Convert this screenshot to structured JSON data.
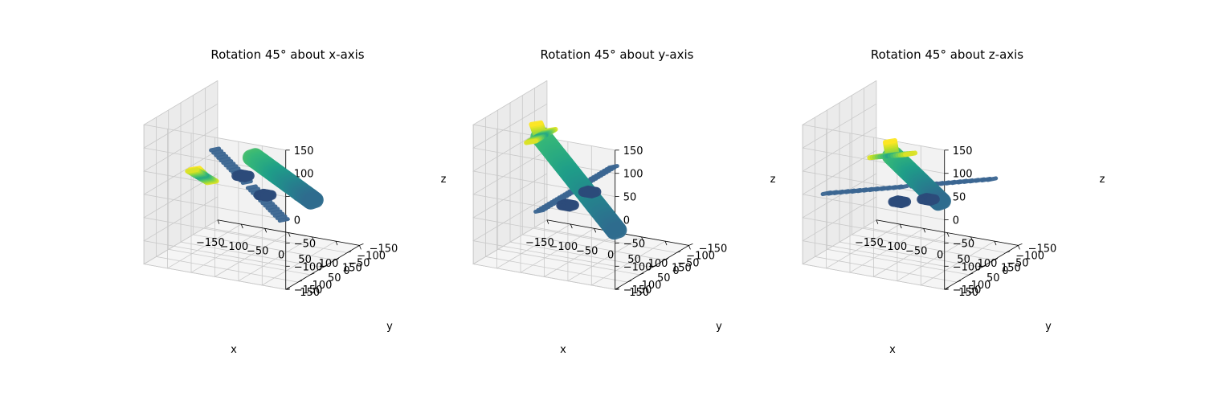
{
  "chart_data": [
    {
      "type": "scatter3d",
      "title": "Rotation 45° about x-axis",
      "xlabel": "x",
      "ylabel": "y",
      "zlabel": "z",
      "xlim": [
        -150,
        150
      ],
      "ylim": [
        -150,
        150
      ],
      "zlim": [
        -150,
        150
      ],
      "xticks": [
        "−150",
        "−100",
        "−50",
        "0",
        "50",
        "100",
        "150"
      ],
      "yticks": [
        "−150",
        "−100",
        "−50",
        "0",
        "50",
        "100",
        "150"
      ],
      "zticks": [
        "−150",
        "−100",
        "−50",
        "0",
        "50",
        "100",
        "150"
      ],
      "grid": true,
      "colormap": "viridis",
      "object": "airplane point cloud",
      "fuselage": {
        "from": [
          -5,
          -15,
          55
        ],
        "to": [
          130,
          0,
          -10
        ]
      },
      "wings": {
        "from": [
          -5,
          -140,
          -120
        ],
        "to": [
          -5,
          140,
          120
        ]
      },
      "tail_fin": {
        "from": [
          -105,
          0,
          0
        ],
        "to": [
          -105,
          30,
          25
        ]
      },
      "tailplane": {
        "from": [
          -105,
          -40,
          -25
        ],
        "to": [
          -105,
          40,
          25
        ]
      },
      "engines": [
        [
          5,
          -45,
          -35
        ],
        [
          5,
          45,
          35
        ]
      ]
    },
    {
      "type": "scatter3d",
      "title": "Rotation 45° about y-axis",
      "xlabel": "x",
      "ylabel": "y",
      "zlabel": "z",
      "xlim": [
        -150,
        150
      ],
      "ylim": [
        -150,
        150
      ],
      "zlim": [
        -150,
        150
      ],
      "xticks": [
        "−150",
        "−100",
        "−50",
        "0",
        "50",
        "100",
        "150"
      ],
      "yticks": [
        "−150",
        "−100",
        "−50",
        "0",
        "50",
        "100",
        "150"
      ],
      "zticks": [
        "−150",
        "−100",
        "−50",
        "0",
        "50",
        "100",
        "150"
      ],
      "grid": true,
      "colormap": "viridis",
      "object": "airplane point cloud",
      "fuselage": {
        "from": [
          -85,
          0,
          90
        ],
        "to": [
          75,
          0,
          -85
        ]
      },
      "wings": {
        "from": [
          -10,
          -150,
          -10
        ],
        "to": [
          -10,
          150,
          -10
        ]
      },
      "tail_fin": {
        "from": [
          -85,
          0,
          90
        ],
        "to": [
          -95,
          0,
          115
        ]
      },
      "tailplane": {
        "from": [
          -85,
          -40,
          90
        ],
        "to": [
          -85,
          40,
          90
        ]
      },
      "engines": [
        [
          -5,
          -45,
          -30
        ],
        [
          -5,
          45,
          -30
        ]
      ]
    },
    {
      "type": "scatter3d",
      "title": "Rotation 45° about z-axis",
      "xlabel": "x",
      "ylabel": "y",
      "zlabel": "z",
      "xlim": [
        -150,
        150
      ],
      "ylim": [
        -150,
        150
      ],
      "zlim": [
        -150,
        150
      ],
      "xticks": [
        "−150",
        "−100",
        "−50",
        "0",
        "50",
        "100",
        "150"
      ],
      "yticks": [
        "−150",
        "−100",
        "−50",
        "0",
        "50",
        "100",
        "150"
      ],
      "zticks": [
        "−150",
        "−100",
        "−50",
        "0",
        "50",
        "100",
        "150"
      ],
      "grid": true,
      "colormap": "viridis",
      "object": "airplane point cloud",
      "fuselage": {
        "from": [
          -85,
          -90,
          20
        ],
        "to": [
          95,
          60,
          0
        ]
      },
      "wings": {
        "from": [
          -120,
          110,
          -5
        ],
        "to": [
          110,
          -120,
          -5
        ]
      },
      "tail_fin": {
        "from": [
          -85,
          -90,
          20
        ],
        "to": [
          -95,
          -100,
          45
        ]
      },
      "tailplane": {
        "from": [
          -110,
          -65,
          20
        ],
        "to": [
          -60,
          -115,
          20
        ]
      },
      "engines": [
        [
          -10,
          25,
          -30
        ],
        [
          30,
          -15,
          -30
        ]
      ]
    }
  ]
}
